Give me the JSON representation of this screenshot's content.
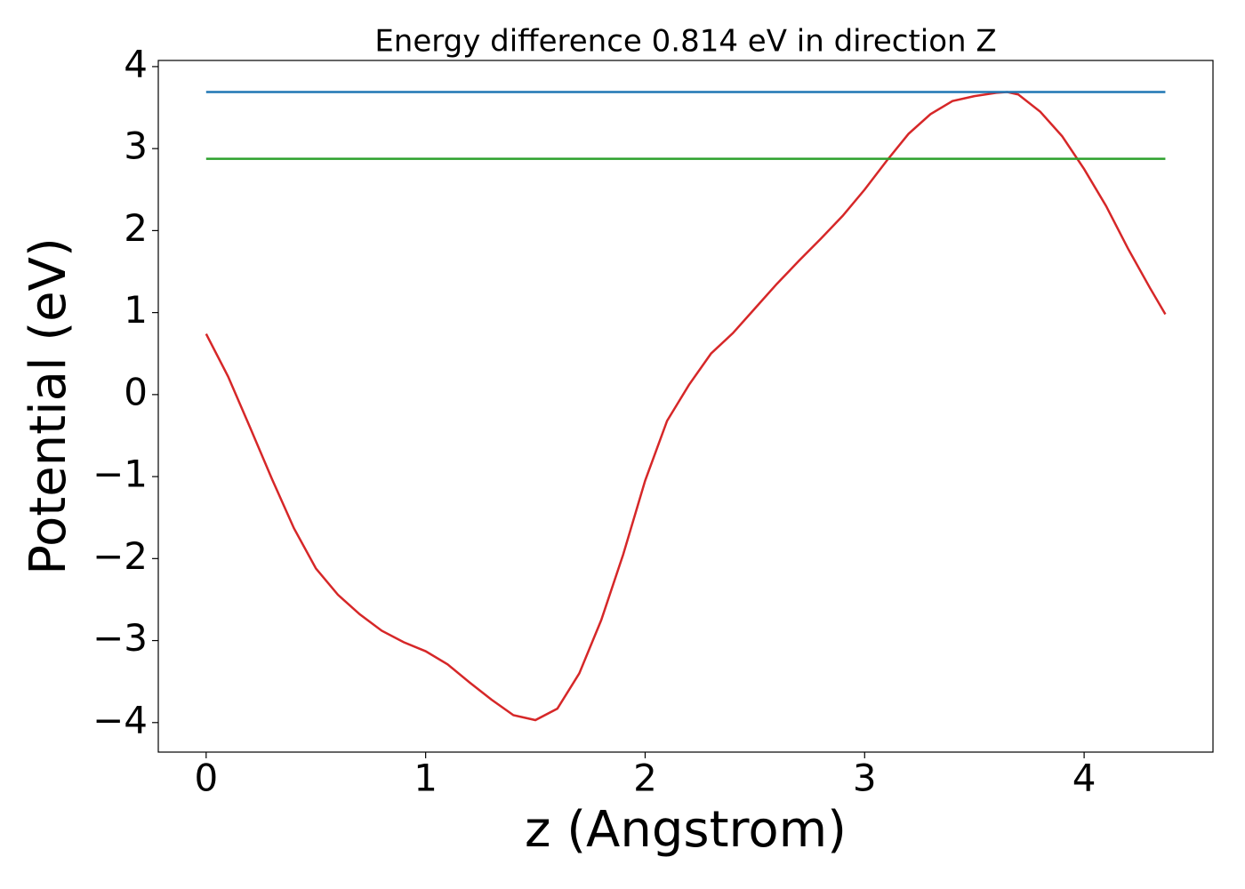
{
  "chart_data": {
    "type": "line",
    "title": "Energy difference 0.814 eV in direction Z",
    "xlabel": "z (Angstrom)",
    "ylabel": "Potential (eV)",
    "xlim": [
      -0.218,
      4.587
    ],
    "ylim": [
      -4.36,
      4.075
    ],
    "xticks": [
      0,
      1,
      2,
      3,
      4
    ],
    "yticks": [
      -4,
      -3,
      -2,
      -1,
      0,
      1,
      2,
      3,
      4
    ],
    "series": [
      {
        "color": "#d62728",
        "x": [
          0,
          0.1,
          0.2,
          0.3,
          0.4,
          0.5,
          0.6,
          0.7,
          0.8,
          0.9,
          1.0,
          1.1,
          1.2,
          1.3,
          1.4,
          1.5,
          1.6,
          1.7,
          1.8,
          1.9,
          2.0,
          2.1,
          2.2,
          2.3,
          2.4,
          2.5,
          2.6,
          2.7,
          2.8,
          2.9,
          3.0,
          3.1,
          3.2,
          3.3,
          3.4,
          3.5,
          3.6,
          3.65,
          3.7,
          3.8,
          3.9,
          4.0,
          4.1,
          4.2,
          4.3,
          4.37
        ],
        "values": [
          0.74,
          0.22,
          -0.4,
          -1.03,
          -1.63,
          -2.12,
          -2.44,
          -2.68,
          -2.88,
          -3.02,
          -3.13,
          -3.29,
          -3.51,
          -3.72,
          -3.91,
          -3.97,
          -3.83,
          -3.4,
          -2.75,
          -1.95,
          -1.05,
          -0.32,
          0.12,
          0.5,
          0.75,
          1.05,
          1.35,
          1.63,
          1.9,
          2.18,
          2.5,
          2.85,
          3.18,
          3.42,
          3.58,
          3.64,
          3.68,
          3.69,
          3.66,
          3.45,
          3.15,
          2.75,
          2.3,
          1.78,
          1.3,
          0.98
        ]
      },
      {
        "color": "#1f77b4",
        "x": [
          0,
          4.37
        ],
        "values": [
          3.69,
          3.69
        ]
      },
      {
        "color": "#2ca02c",
        "x": [
          0,
          4.37
        ],
        "values": [
          2.876,
          2.876
        ]
      }
    ]
  }
}
